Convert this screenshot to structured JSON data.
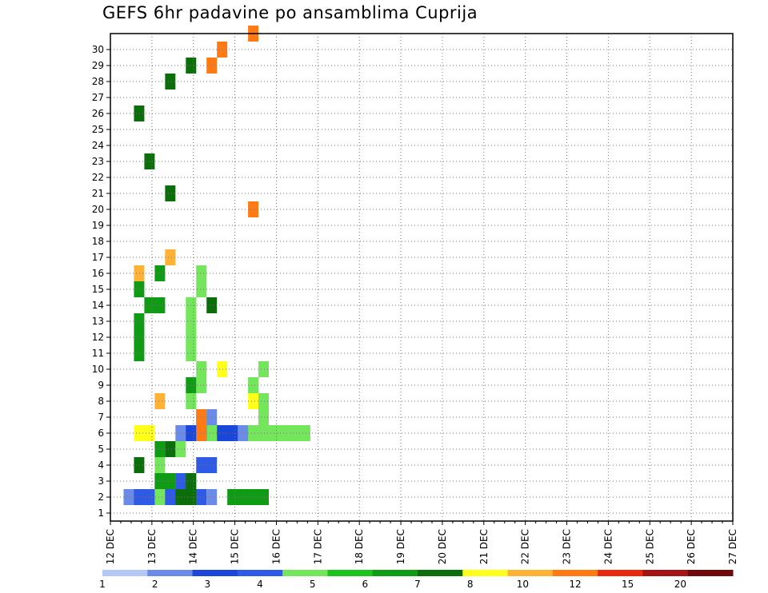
{
  "chart_data": {
    "type": "heatmap",
    "title": "GEFS 6hr padavine po ansamblima Cuprija",
    "x_axis": {
      "ticks": [
        "12 DEC",
        "13 DEC",
        "14 DEC",
        "15 DEC",
        "16 DEC",
        "17 DEC",
        "18 DEC",
        "19 DEC",
        "20 DEC",
        "21 DEC",
        "22 DEC",
        "23 DEC",
        "24 DEC",
        "25 DEC",
        "26 DEC",
        "27 DEC"
      ],
      "step": "6hr"
    },
    "y_axis": {
      "ticks": [
        1,
        2,
        3,
        4,
        5,
        6,
        7,
        8,
        9,
        10,
        11,
        12,
        13,
        14,
        15,
        16,
        17,
        18,
        19,
        20,
        21,
        22,
        23,
        24,
        25,
        26,
        27,
        28,
        29,
        30
      ]
    },
    "grid": true,
    "legend": {
      "placement": "bottom",
      "labels": [
        "1",
        "2",
        "3",
        "4",
        "5",
        "6",
        "7",
        "8",
        "10",
        "12",
        "15",
        "20"
      ],
      "colors": [
        "#b3c8f5",
        "#6a8ce8",
        "#1a47d9",
        "#2f5ae6",
        "#73e65c",
        "#1ec21e",
        "#0f9c14",
        "#0b6e0b",
        "#ffff1a",
        "#ffb233",
        "#ff7a14",
        "#e8280f",
        "#a51414",
        "#6e0a0a"
      ]
    },
    "cells": [
      [
        1,
        0,
        1,
        2
      ],
      [
        2,
        1,
        1,
        4
      ],
      [
        3,
        1,
        1,
        7
      ],
      [
        1,
        3,
        2,
        3
      ],
      [
        3,
        4,
        2,
        3
      ],
      [
        1,
        5,
        5,
        6
      ],
      [
        2,
        6,
        5,
        6
      ],
      [
        4,
        7,
        5,
        6
      ],
      [
        1,
        8,
        5,
        6
      ],
      [
        2,
        9,
        5,
        6
      ],
      [
        2,
        10,
        5,
        6
      ],
      [
        1,
        11,
        5,
        6
      ],
      [
        4,
        12,
        5,
        6
      ],
      [
        3,
        7,
        3,
        2
      ],
      [
        2,
        7,
        5,
        2
      ],
      [
        1,
        7,
        6,
        2
      ],
      [
        1,
        8,
        1,
        1
      ],
      [
        4,
        13,
        6,
        1
      ],
      [
        4,
        13,
        7,
        1
      ],
      [
        4,
        12,
        8,
        1
      ],
      [
        4,
        13,
        9,
        1
      ],
      [
        4,
        3,
        1,
        1
      ],
      [
        4,
        4,
        2,
        1
      ],
      [
        4,
        3,
        3,
        1
      ],
      [
        4,
        5,
        4,
        1
      ],
      [
        4,
        8,
        5,
        1
      ],
      [
        4,
        7,
        6,
        1
      ],
      [
        4,
        6,
        7,
        1
      ],
      [
        4,
        7,
        8,
        1
      ],
      [
        4,
        7,
        9,
        1
      ],
      [
        4,
        6,
        10,
        1
      ],
      [
        4,
        6,
        11,
        1
      ],
      [
        4,
        6,
        12,
        1
      ],
      [
        4,
        6,
        13,
        1
      ],
      [
        4,
        7,
        14,
        1
      ],
      [
        4,
        7,
        15,
        1
      ],
      [
        6,
        10,
        1,
        4
      ],
      [
        6,
        3,
        4,
        1
      ],
      [
        6,
        3,
        2,
        2
      ],
      [
        6,
        6,
        8,
        1
      ],
      [
        6,
        1,
        10,
        1
      ],
      [
        6,
        1,
        11,
        1
      ],
      [
        6,
        1,
        12,
        1
      ],
      [
        6,
        2,
        13,
        2
      ],
      [
        6,
        1,
        14,
        1
      ],
      [
        6,
        3,
        15,
        1
      ],
      [
        7,
        5,
        1,
        2
      ],
      [
        7,
        6,
        2,
        1
      ],
      [
        7,
        1,
        3,
        1
      ],
      [
        7,
        4,
        4,
        1
      ],
      [
        7,
        8,
        13,
        1
      ],
      [
        7,
        4,
        20,
        1
      ],
      [
        7,
        2,
        22,
        1
      ],
      [
        7,
        1,
        25,
        1
      ],
      [
        7,
        4,
        27,
        1
      ],
      [
        7,
        6,
        28,
        1
      ],
      [
        8,
        1,
        5,
        2
      ],
      [
        8,
        12,
        7,
        1
      ],
      [
        8,
        9,
        9,
        1
      ],
      [
        9,
        3,
        7,
        1
      ],
      [
        9,
        4,
        16,
        1
      ],
      [
        9,
        1,
        15,
        1
      ],
      [
        10,
        12,
        19,
        1
      ],
      [
        10,
        7,
        5,
        1
      ],
      [
        10,
        7,
        6,
        1
      ],
      [
        10,
        8,
        28,
        1
      ],
      [
        10,
        9,
        29,
        1
      ],
      [
        10,
        12,
        30,
        1
      ]
    ]
  }
}
